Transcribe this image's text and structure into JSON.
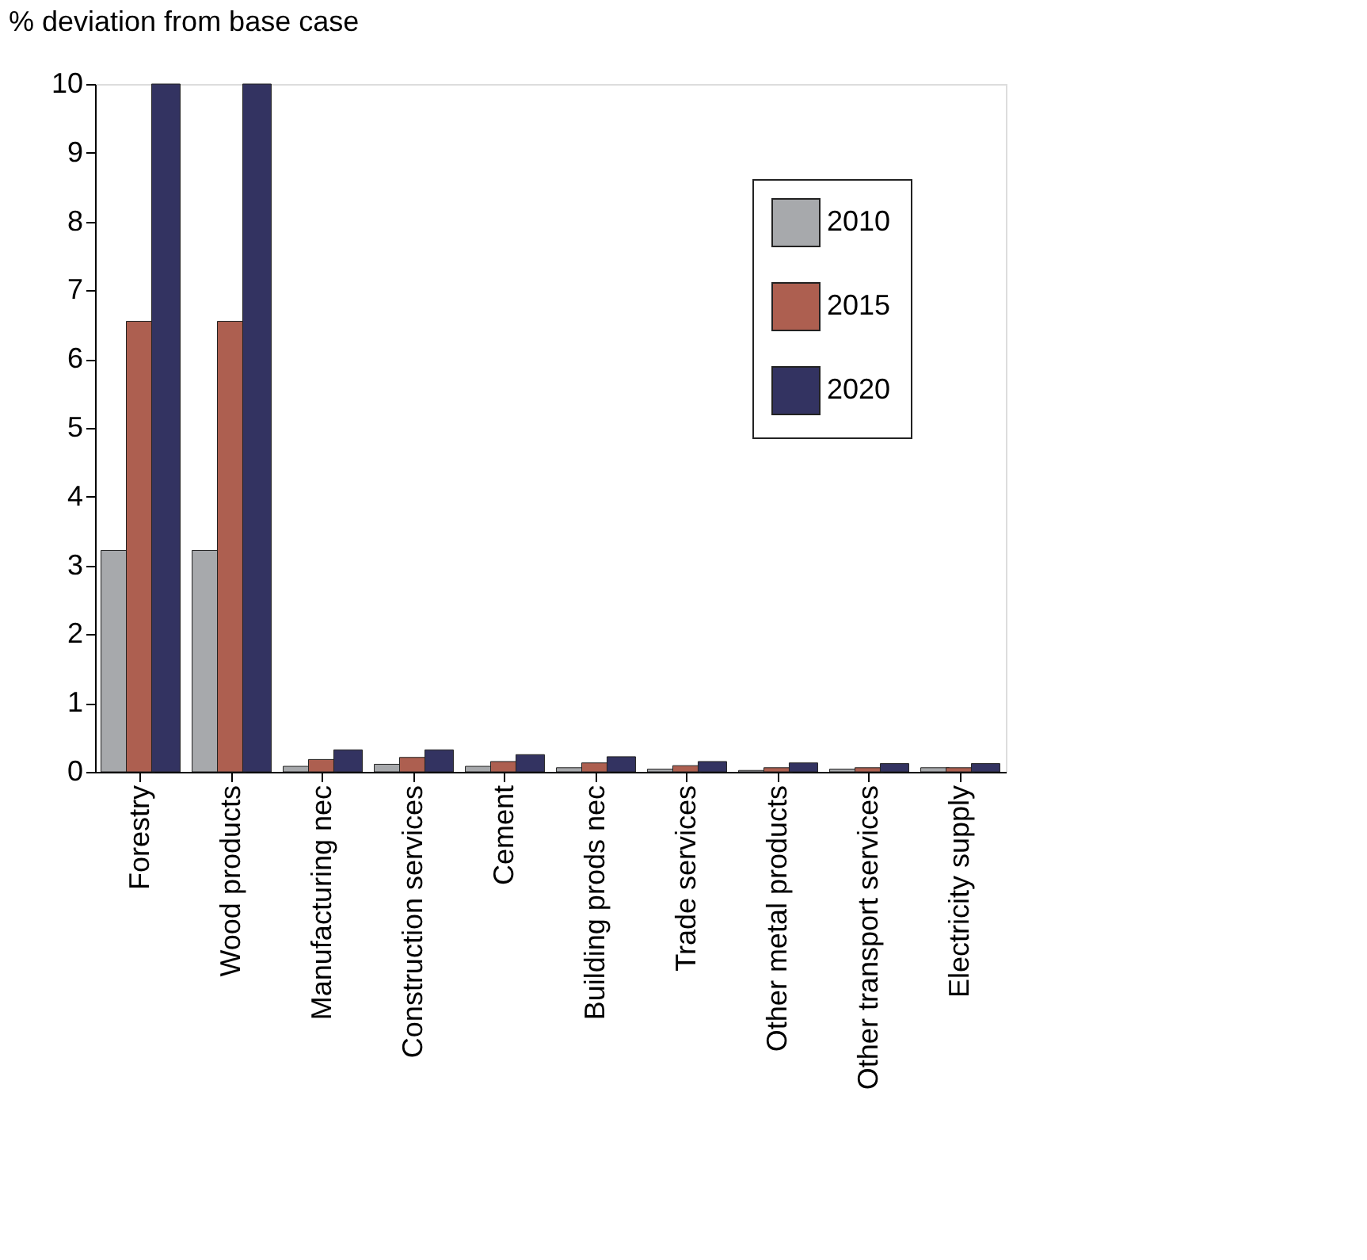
{
  "chart_data": {
    "type": "bar",
    "ylabel": "% deviation from base case",
    "categories": [
      "Forestry",
      "Wood products",
      "Manufacturing nec",
      "Construction services",
      "Cement",
      "Building prods nec",
      "Trade services",
      "Other metal products",
      "Other transport services",
      "Electricity supply"
    ],
    "series": [
      {
        "name": "2010",
        "color": "#a7a9ac",
        "values": [
          3.22,
          3.22,
          0.08,
          0.11,
          0.08,
          0.06,
          0.04,
          0.02,
          0.04,
          0.06
        ]
      },
      {
        "name": "2015",
        "color": "#ad5f50",
        "values": [
          6.55,
          6.55,
          0.18,
          0.21,
          0.15,
          0.13,
          0.09,
          0.06,
          0.06,
          0.06
        ]
      },
      {
        "name": "2020",
        "color": "#333361",
        "values": [
          10,
          10,
          0.32,
          0.32,
          0.25,
          0.22,
          0.15,
          0.13,
          0.12,
          0.12
        ]
      }
    ],
    "ylim": [
      0,
      10
    ],
    "yticks": [
      0,
      1,
      2,
      3,
      4,
      5,
      6,
      7,
      8,
      9,
      10
    ],
    "grid": false,
    "legend": "top right"
  }
}
